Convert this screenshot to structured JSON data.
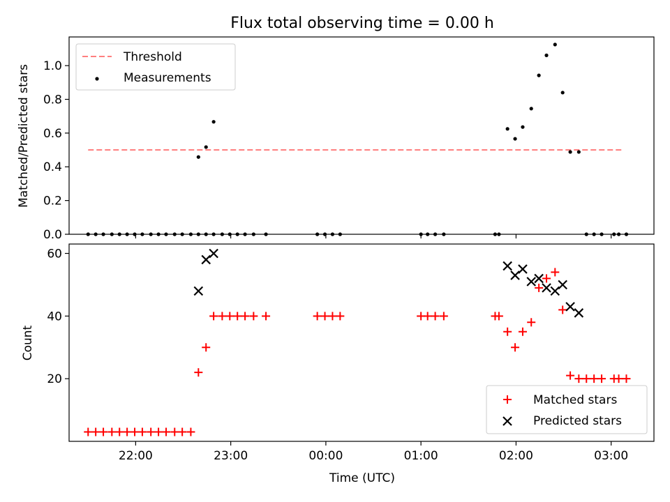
{
  "chart_data": [
    {
      "type": "scatter",
      "title": "Flux total observing time = 0.00 h",
      "xlabel": "",
      "ylabel": "Matched/Predicted stars",
      "xlim": [
        21.3,
        27.45
      ],
      "ylim": [
        0.0,
        1.17
      ],
      "yticks": [
        0.0,
        0.2,
        0.4,
        0.6,
        0.8,
        1.0
      ],
      "ytick_labels": [
        "0.0",
        "0.2",
        "0.4",
        "0.6",
        "0.8",
        "1.0"
      ],
      "legend_position": "top-left",
      "threshold": {
        "name": "Threshold",
        "value": 0.5,
        "x": [
          21.5,
          27.13
        ],
        "color": "#ff7f7f",
        "style": "dashed"
      },
      "series": [
        {
          "name": "Measurements",
          "marker": "dot",
          "color": "#000000",
          "x": [
            21.5,
            21.58,
            21.66,
            21.75,
            21.83,
            21.91,
            21.99,
            22.07,
            22.16,
            22.24,
            22.32,
            22.41,
            22.49,
            22.58,
            22.66,
            22.74,
            22.82,
            22.66,
            22.74,
            22.82,
            22.91,
            22.99,
            23.07,
            23.15,
            23.24,
            23.37,
            23.91,
            23.99,
            24.07,
            24.15,
            25.0,
            25.07,
            25.15,
            25.24,
            25.78,
            25.82,
            25.91,
            25.99,
            26.07,
            26.16,
            26.24,
            26.32,
            26.41,
            26.49,
            26.57,
            26.66,
            26.74,
            26.82,
            26.9,
            27.03,
            27.08,
            27.16
          ],
          "y": [
            0,
            0,
            0,
            0,
            0,
            0,
            0,
            0,
            0,
            0,
            0,
            0,
            0,
            0,
            0,
            0,
            0,
            0.458,
            0.517,
            0.667,
            0,
            0,
            0,
            0,
            0,
            0,
            0,
            0,
            0,
            0,
            0,
            0,
            0,
            0,
            0,
            0,
            0.625,
            0.566,
            0.636,
            0.745,
            0.942,
            1.061,
            1.125,
            0.84,
            0.488,
            0.488,
            0,
            0,
            0,
            0,
            0,
            0
          ]
        }
      ]
    },
    {
      "type": "scatter",
      "title": "",
      "xlabel": "Time (UTC)",
      "ylabel": "Count",
      "xlim": [
        21.3,
        27.45
      ],
      "ylim": [
        0,
        63
      ],
      "yticks": [
        20,
        40,
        60
      ],
      "ytick_labels": [
        "20",
        "40",
        "60"
      ],
      "xticks": [
        22,
        23,
        24,
        25,
        26,
        27
      ],
      "xtick_labels": [
        "22:00",
        "23:00",
        "00:00",
        "01:00",
        "02:00",
        "03:00"
      ],
      "legend_position": "bottom-right",
      "series": [
        {
          "name": "Matched stars",
          "marker": "plus",
          "color": "#ff0000",
          "x": [
            21.5,
            21.58,
            21.66,
            21.75,
            21.83,
            21.91,
            21.99,
            22.07,
            22.16,
            22.24,
            22.32,
            22.41,
            22.49,
            22.58,
            22.66,
            22.74,
            22.82,
            22.91,
            22.99,
            23.07,
            23.15,
            23.24,
            23.37,
            23.91,
            23.99,
            24.07,
            24.15,
            25.0,
            25.07,
            25.15,
            25.24,
            25.78,
            25.82,
            25.91,
            25.99,
            26.07,
            26.16,
            26.24,
            26.32,
            26.41,
            26.49,
            26.57,
            26.66,
            26.74,
            26.82,
            26.9,
            27.03,
            27.08,
            27.16
          ],
          "y": [
            3,
            3,
            3,
            3,
            3,
            3,
            3,
            3,
            3,
            3,
            3,
            3,
            3,
            3,
            22,
            30,
            40,
            40,
            40,
            40,
            40,
            40,
            40,
            40,
            40,
            40,
            40,
            40,
            40,
            40,
            40,
            40,
            40,
            35,
            30,
            35,
            38,
            49,
            52,
            54,
            42,
            21,
            20,
            20,
            20,
            20,
            20,
            20,
            20
          ]
        },
        {
          "name": "Predicted stars",
          "marker": "x",
          "color": "#000000",
          "x": [
            22.66,
            22.74,
            22.82,
            25.91,
            25.99,
            26.07,
            26.16,
            26.24,
            26.32,
            26.41,
            26.49,
            26.57,
            26.66
          ],
          "y": [
            48,
            58,
            60,
            56,
            53,
            55,
            51,
            52,
            49,
            48,
            50,
            43,
            41
          ]
        }
      ]
    }
  ]
}
